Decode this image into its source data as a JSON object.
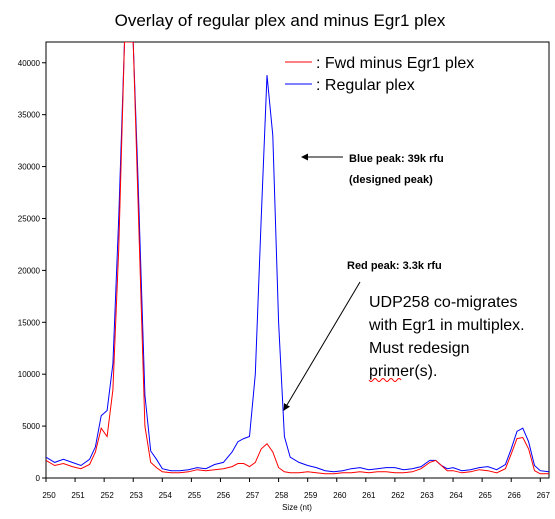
{
  "chart_data": {
    "type": "line",
    "title": "Overlay of regular plex and minus Egr1 plex",
    "xlabel": "Size (nt)",
    "ylabel": "",
    "xlim": [
      250,
      267.3
    ],
    "ylim": [
      0,
      42000
    ],
    "x_ticks": [
      "250",
      "251",
      "252",
      "253",
      "254",
      "255",
      "256",
      "257",
      "258",
      "259",
      "260",
      "261",
      "262",
      "263",
      "264",
      "265",
      "266",
      "267"
    ],
    "y_ticks": [
      "0",
      "5000",
      "10000",
      "15000",
      "20000",
      "25000",
      "30000",
      "35000",
      "40000"
    ],
    "series": [
      {
        "name": "Regular plex",
        "color": "#0000ff",
        "x": [
          250.0,
          250.3,
          250.6,
          250.9,
          251.2,
          251.5,
          251.7,
          251.9,
          252.1,
          252.3,
          252.5,
          252.7,
          252.85,
          253.0,
          253.15,
          253.4,
          253.6,
          253.8,
          254.0,
          254.3,
          254.6,
          254.9,
          255.2,
          255.5,
          255.8,
          256.1,
          256.4,
          256.6,
          256.8,
          257.0,
          257.2,
          257.4,
          257.6,
          257.8,
          258.0,
          258.2,
          258.4,
          258.7,
          259.0,
          259.3,
          259.6,
          259.9,
          260.2,
          260.5,
          260.8,
          261.1,
          261.4,
          261.7,
          262.0,
          262.3,
          262.6,
          262.9,
          263.2,
          263.4,
          263.6,
          263.8,
          264.0,
          264.3,
          264.6,
          264.9,
          265.2,
          265.5,
          265.8,
          266.0,
          266.2,
          266.4,
          266.6,
          266.8,
          267.0,
          267.3
        ],
        "values": [
          2000,
          1500,
          1800,
          1500,
          1200,
          1800,
          3000,
          6000,
          6500,
          11000,
          25000,
          42000,
          42000,
          42000,
          30000,
          8000,
          2600,
          1800,
          900,
          700,
          700,
          800,
          1000,
          900,
          1300,
          1500,
          2500,
          3500,
          3800,
          4000,
          10000,
          25000,
          38800,
          33000,
          15000,
          4000,
          2000,
          1500,
          1200,
          1000,
          700,
          600,
          700,
          900,
          1000,
          800,
          900,
          1000,
          1000,
          800,
          900,
          1100,
          1700,
          1700,
          1200,
          900,
          1000,
          700,
          800,
          1000,
          1100,
          800,
          1300,
          2800,
          4500,
          4800,
          3500,
          1200,
          700,
          600
        ]
      },
      {
        "name": "Fwd minus Egr1 plex",
        "color": "#ff0000",
        "x": [
          250.0,
          250.3,
          250.6,
          250.9,
          251.2,
          251.5,
          251.7,
          251.9,
          252.1,
          252.3,
          252.5,
          252.7,
          252.85,
          253.0,
          253.15,
          253.4,
          253.6,
          253.8,
          254.0,
          254.3,
          254.6,
          254.9,
          255.2,
          255.5,
          255.8,
          256.1,
          256.4,
          256.6,
          256.8,
          257.0,
          257.2,
          257.4,
          257.6,
          257.8,
          258.0,
          258.2,
          258.4,
          258.7,
          259.0,
          259.3,
          259.6,
          259.9,
          260.2,
          260.5,
          260.8,
          261.1,
          261.4,
          261.7,
          262.0,
          262.3,
          262.6,
          262.9,
          263.2,
          263.4,
          263.6,
          263.8,
          264.0,
          264.3,
          264.6,
          264.9,
          265.2,
          265.5,
          265.8,
          266.0,
          266.2,
          266.4,
          266.6,
          266.8,
          267.0,
          267.3
        ],
        "values": [
          1700,
          1200,
          1400,
          1100,
          900,
          1300,
          2500,
          4800,
          4000,
          8500,
          22000,
          42000,
          42000,
          42000,
          28000,
          5000,
          1500,
          1000,
          600,
          500,
          500,
          600,
          800,
          700,
          800,
          900,
          1100,
          1400,
          1400,
          1100,
          1500,
          2800,
          3300,
          2500,
          1000,
          600,
          500,
          500,
          600,
          500,
          400,
          400,
          500,
          500,
          600,
          500,
          600,
          600,
          500,
          500,
          600,
          900,
          1500,
          1700,
          1200,
          700,
          700,
          500,
          600,
          800,
          700,
          500,
          900,
          2300,
          3800,
          3900,
          2800,
          700,
          400,
          400
        ]
      }
    ],
    "legend": {
      "placement": "top-right",
      "entries": [
        {
          "label": ": Fwd minus Egr1 plex",
          "color": "#ff0000"
        },
        {
          "label": ": Regular plex",
          "color": "#0000ff"
        }
      ]
    },
    "annotations": {
      "blue_peak_line1": "Blue peak: 39k rfu",
      "blue_peak_line2": "(designed peak)",
      "red_peak": "Red peak: 3.3k rfu",
      "note_line1": "UDP258 co-migrates",
      "note_line2": "with Egr1 in multiplex.",
      "note_line3": "Must redesign",
      "note_line4": "primer(s)."
    },
    "grid": false
  }
}
